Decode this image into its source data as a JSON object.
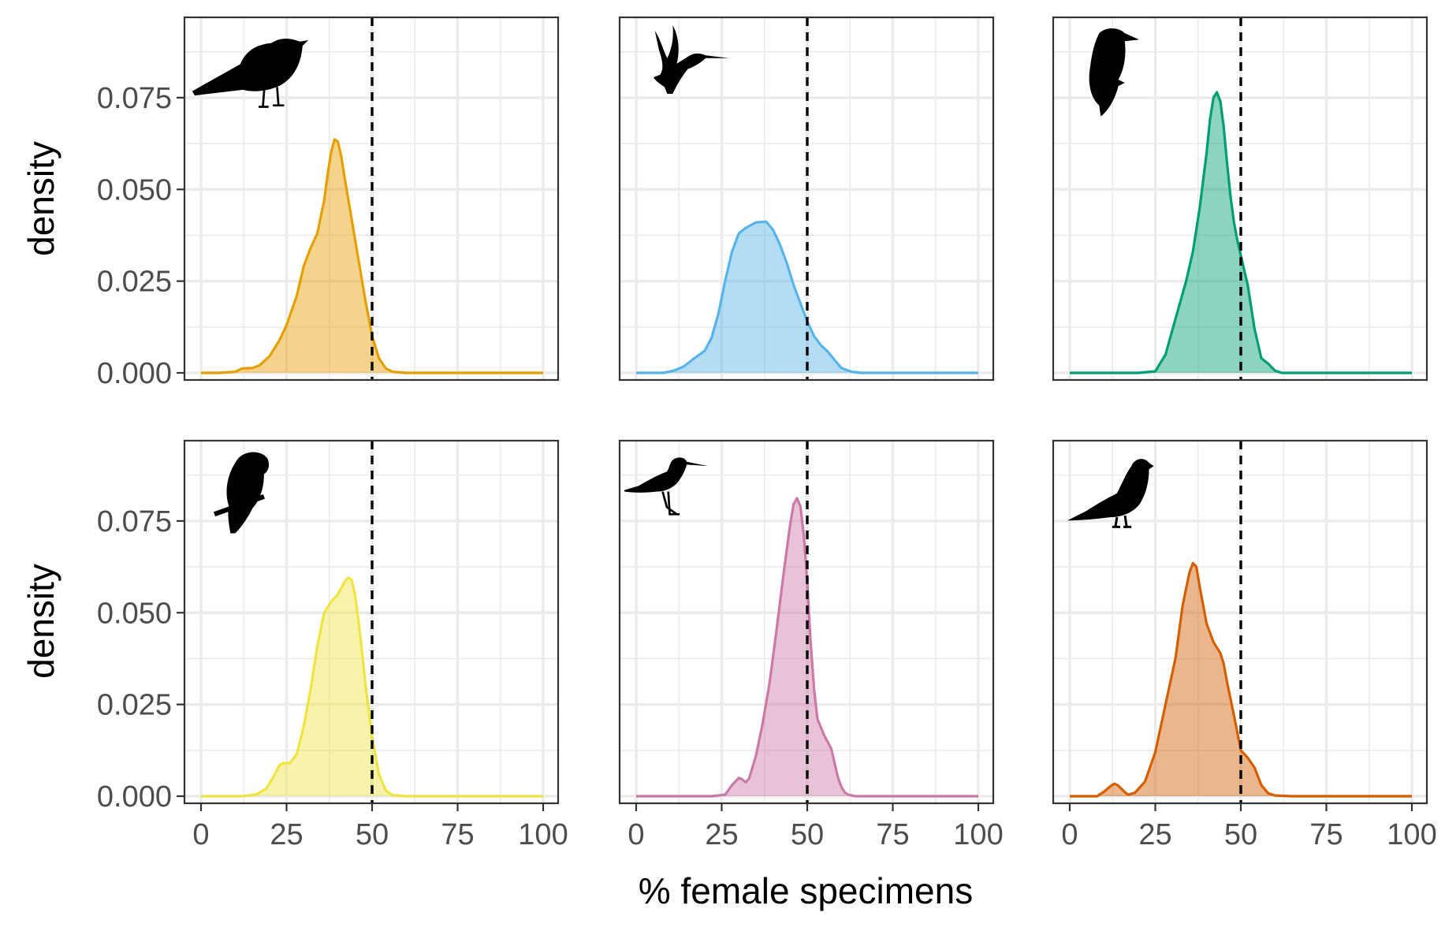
{
  "axis_labels": {
    "y": "density",
    "x": "% female specimens"
  },
  "chart_data": [
    {
      "type": "area",
      "icon": "songbird-silhouette-icon",
      "color": "#E69F00",
      "xlim": [
        0,
        100
      ],
      "ylim": [
        0,
        0.09
      ],
      "x_ticks": [
        "0",
        "25",
        "50",
        "75",
        "100"
      ],
      "y_ticks": [
        "0.000",
        "0.025",
        "0.050",
        "0.075"
      ],
      "reference_line_x": 50,
      "x": [
        0,
        5,
        10,
        12,
        15,
        17,
        20,
        23,
        25,
        28,
        30,
        32,
        34,
        36,
        37,
        38,
        39,
        40,
        41,
        42,
        44,
        46,
        48,
        50,
        52,
        54,
        56,
        60,
        70,
        80,
        90,
        100
      ],
      "y": [
        0,
        0,
        0.0003,
        0.0012,
        0.0013,
        0.002,
        0.0045,
        0.009,
        0.013,
        0.021,
        0.029,
        0.034,
        0.038,
        0.047,
        0.054,
        0.06,
        0.0636,
        0.063,
        0.059,
        0.053,
        0.042,
        0.031,
        0.02,
        0.01,
        0.004,
        0.0012,
        0.0003,
        0,
        0,
        0,
        0,
        0
      ]
    },
    {
      "type": "area",
      "icon": "hummingbird-silhouette-icon",
      "color": "#56B4E9",
      "xlim": [
        0,
        100
      ],
      "ylim": [
        0,
        0.09
      ],
      "x_ticks": [
        "0",
        "25",
        "50",
        "75",
        "100"
      ],
      "y_ticks": [
        "0.000",
        "0.025",
        "0.050",
        "0.075"
      ],
      "reference_line_x": 50,
      "x": [
        0,
        8,
        11,
        14,
        17,
        20,
        22,
        24,
        26,
        28,
        30,
        32,
        35,
        38,
        40,
        42,
        44,
        46,
        48,
        50,
        52,
        54,
        56,
        58,
        60,
        63,
        66,
        70,
        80,
        90,
        100
      ],
      "y": [
        0,
        0,
        0.0006,
        0.0018,
        0.004,
        0.006,
        0.0095,
        0.016,
        0.025,
        0.033,
        0.038,
        0.0395,
        0.041,
        0.0412,
        0.039,
        0.035,
        0.03,
        0.024,
        0.019,
        0.014,
        0.01,
        0.0075,
        0.0058,
        0.0035,
        0.0013,
        0.0003,
        0,
        0,
        0,
        0,
        0
      ]
    },
    {
      "type": "area",
      "icon": "woodpecker-silhouette-icon",
      "color": "#009E73",
      "xlim": [
        0,
        100
      ],
      "ylim": [
        0,
        0.09
      ],
      "x_ticks": [
        "0",
        "25",
        "50",
        "75",
        "100"
      ],
      "y_ticks": [
        "0.000",
        "0.025",
        "0.050",
        "0.075"
      ],
      "reference_line_x": 50,
      "x": [
        0,
        20,
        25,
        28,
        31,
        34,
        36,
        38,
        40,
        41,
        42,
        43,
        44,
        45,
        46,
        47,
        48,
        49,
        50,
        51,
        52,
        54,
        56,
        58,
        60,
        62,
        65,
        70,
        80,
        90,
        100
      ],
      "y": [
        0,
        0,
        0.0004,
        0.005,
        0.015,
        0.025,
        0.033,
        0.045,
        0.06,
        0.069,
        0.075,
        0.0765,
        0.074,
        0.067,
        0.057,
        0.048,
        0.041,
        0.036,
        0.032,
        0.028,
        0.024,
        0.012,
        0.004,
        0.0025,
        0.0006,
        0,
        0,
        0,
        0,
        0,
        0
      ]
    },
    {
      "type": "area",
      "icon": "parrot-silhouette-icon",
      "color": "#F0E442",
      "xlim": [
        0,
        100
      ],
      "ylim": [
        0,
        0.09
      ],
      "x_ticks": [
        "0",
        "25",
        "50",
        "75",
        "100"
      ],
      "y_ticks": [
        "0.000",
        "0.025",
        "0.050",
        "0.075"
      ],
      "reference_line_x": 50,
      "x": [
        0,
        12,
        16,
        19,
        21,
        23,
        24,
        26,
        28,
        30,
        32,
        34,
        36,
        38,
        40,
        42,
        43,
        44,
        45,
        46,
        47,
        48,
        50,
        52,
        54,
        56,
        60,
        70,
        80,
        90,
        100
      ],
      "y": [
        0,
        0,
        0.0004,
        0.002,
        0.005,
        0.0085,
        0.009,
        0.009,
        0.0115,
        0.019,
        0.029,
        0.041,
        0.05,
        0.053,
        0.055,
        0.0585,
        0.0595,
        0.059,
        0.055,
        0.048,
        0.04,
        0.031,
        0.016,
        0.006,
        0.0015,
        0.0003,
        0,
        0,
        0,
        0,
        0
      ]
    },
    {
      "type": "area",
      "icon": "shorebird-silhouette-icon",
      "color": "#CC79A7",
      "xlim": [
        0,
        100
      ],
      "ylim": [
        0,
        0.09
      ],
      "x_ticks": [
        "0",
        "25",
        "50",
        "75",
        "100"
      ],
      "y_ticks": [
        "0.000",
        "0.025",
        "0.050",
        "0.075"
      ],
      "reference_line_x": 50,
      "x": [
        0,
        22,
        26,
        28,
        30,
        31,
        32,
        33,
        35,
        37,
        39,
        41,
        43,
        45,
        46,
        47,
        48,
        49,
        50,
        51,
        52,
        53,
        55,
        57,
        58,
        59,
        60,
        61,
        62,
        64,
        70,
        80,
        90,
        100
      ],
      "y": [
        0,
        0,
        0.0004,
        0.003,
        0.005,
        0.0046,
        0.0038,
        0.0048,
        0.011,
        0.02,
        0.031,
        0.045,
        0.06,
        0.074,
        0.0795,
        0.0812,
        0.079,
        0.071,
        0.058,
        0.042,
        0.029,
        0.021,
        0.0165,
        0.013,
        0.009,
        0.005,
        0.0025,
        0.001,
        0.0004,
        0,
        0,
        0,
        0,
        0
      ]
    },
    {
      "type": "area",
      "icon": "pigeon-silhouette-icon",
      "color": "#D55E00",
      "xlim": [
        0,
        100
      ],
      "ylim": [
        0,
        0.09
      ],
      "x_ticks": [
        "0",
        "25",
        "50",
        "75",
        "100"
      ],
      "y_ticks": [
        "0.000",
        "0.025",
        "0.050",
        "0.075"
      ],
      "reference_line_x": 50,
      "x": [
        0,
        8,
        10,
        12,
        13,
        14,
        16,
        17,
        19,
        22,
        25,
        28,
        31,
        33,
        35,
        36,
        37,
        38,
        40,
        42,
        43,
        44,
        45,
        46,
        48,
        50,
        52,
        54,
        56,
        58,
        60,
        65,
        70,
        80,
        90,
        100
      ],
      "y": [
        0,
        0,
        0.0012,
        0.0028,
        0.0034,
        0.003,
        0.0012,
        0.0004,
        0.0009,
        0.004,
        0.012,
        0.025,
        0.038,
        0.052,
        0.061,
        0.0635,
        0.0625,
        0.057,
        0.047,
        0.042,
        0.0405,
        0.039,
        0.036,
        0.031,
        0.022,
        0.0125,
        0.0105,
        0.0078,
        0.003,
        0.0008,
        0.0002,
        0,
        0,
        0,
        0,
        0
      ]
    }
  ]
}
